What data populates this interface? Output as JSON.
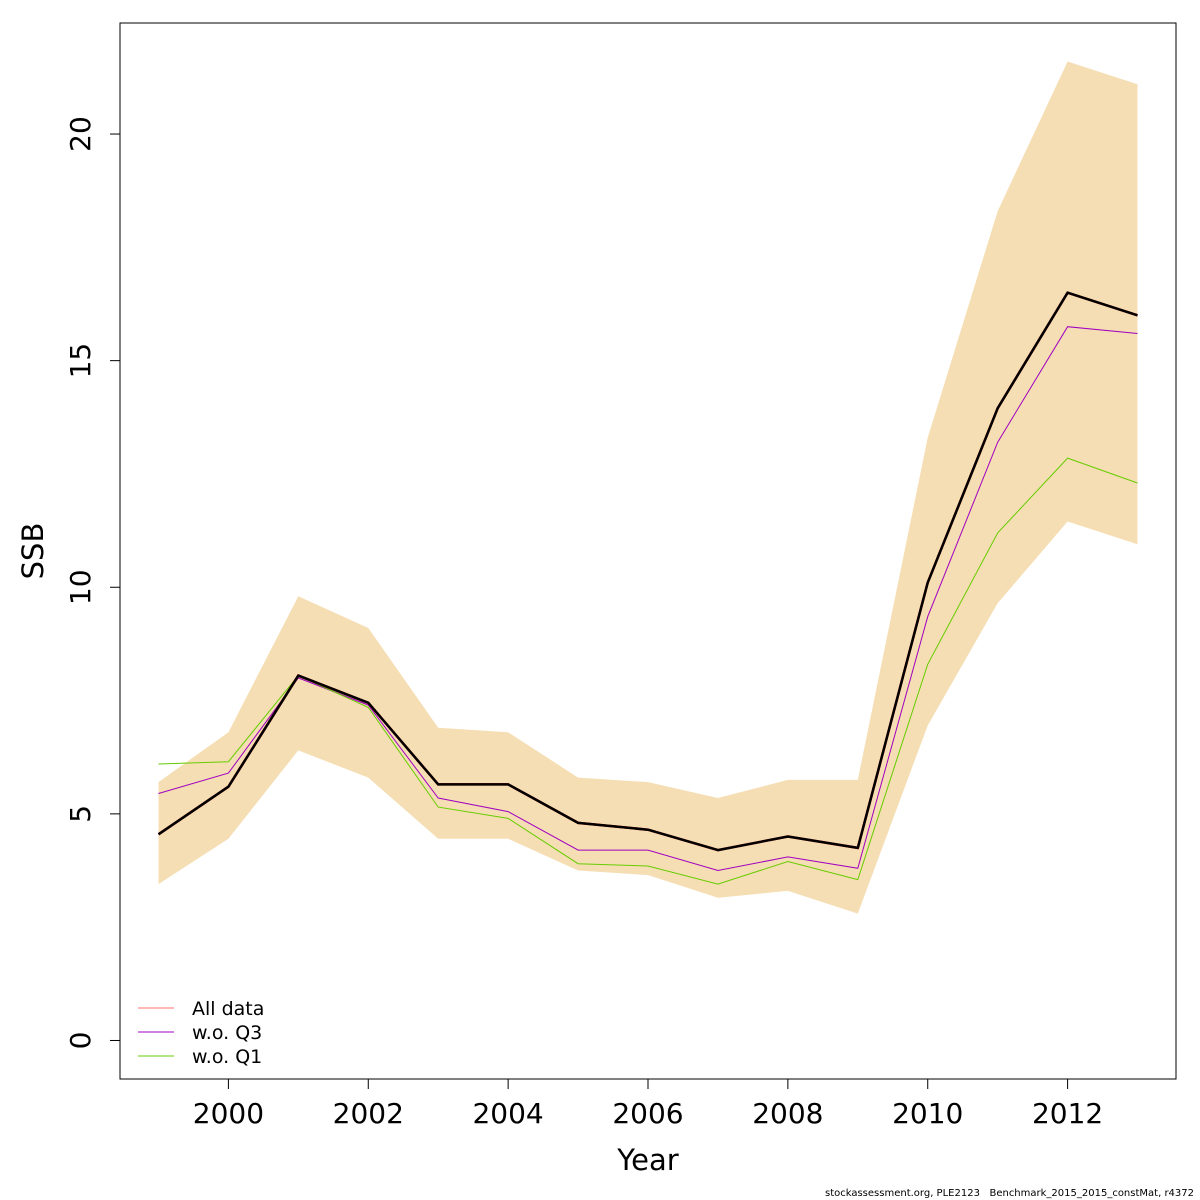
{
  "chart_data": {
    "type": "line",
    "xlabel": "Year",
    "ylabel": "SSB",
    "xlim": [
      1998.45,
      2013.55
    ],
    "ylim": [
      -0.85,
      22.45
    ],
    "x_ticks": [
      2000,
      2002,
      2004,
      2006,
      2008,
      2010,
      2012
    ],
    "y_ticks": [
      0,
      5,
      10,
      15,
      20
    ],
    "x": [
      1999,
      2000,
      2001,
      2002,
      2003,
      2004,
      2005,
      2006,
      2007,
      2008,
      2009,
      2010,
      2011,
      2012,
      2013
    ],
    "band": {
      "color": "#f5deb3",
      "upper": [
        5.7,
        6.8,
        9.8,
        9.1,
        6.9,
        6.8,
        5.8,
        5.7,
        5.35,
        5.75,
        5.75,
        13.3,
        18.3,
        21.6,
        21.1
      ],
      "lower": [
        3.45,
        4.45,
        6.4,
        5.8,
        4.45,
        4.45,
        3.75,
        3.65,
        3.15,
        3.3,
        2.8,
        6.95,
        9.65,
        11.45,
        10.95
      ]
    },
    "series": [
      {
        "name": "All data",
        "color": "#ff0000",
        "width": 2.5,
        "values": [
          4.55,
          5.6,
          8.05,
          7.45,
          5.65,
          5.65,
          4.8,
          4.65,
          4.2,
          4.5,
          4.25,
          10.1,
          13.95,
          16.5,
          16.0
        ]
      },
      {
        "name": "w.o. Q3",
        "color": "#a000c0",
        "width": 1,
        "values": [
          5.45,
          5.9,
          8.0,
          7.4,
          5.35,
          5.05,
          4.2,
          4.2,
          3.75,
          4.05,
          3.8,
          9.35,
          13.2,
          15.75,
          15.6
        ]
      },
      {
        "name": "w.o. Q1",
        "color": "#66cc00",
        "width": 1,
        "values": [
          6.1,
          6.15,
          8.05,
          7.35,
          5.15,
          4.9,
          3.9,
          3.85,
          3.45,
          3.95,
          3.55,
          8.3,
          11.2,
          12.85,
          12.3
        ]
      }
    ],
    "highlight_line": {
      "color": "#000000",
      "width": 2.5,
      "values": [
        4.55,
        5.6,
        8.05,
        7.45,
        5.65,
        5.65,
        4.8,
        4.65,
        4.2,
        4.5,
        4.25,
        10.1,
        13.95,
        16.5,
        16.0
      ]
    },
    "legend": {
      "position": "bottom-left",
      "entries": [
        {
          "label": "All data",
          "color": "#ff7070"
        },
        {
          "label": "w.o. Q3",
          "color": "#a000c0"
        },
        {
          "label": "w.o. Q1",
          "color": "#66cc00"
        }
      ]
    },
    "grid": false
  },
  "footer": "stockassessment.org, PLE2123   Benchmark_2015_2015_constMat, r4372"
}
